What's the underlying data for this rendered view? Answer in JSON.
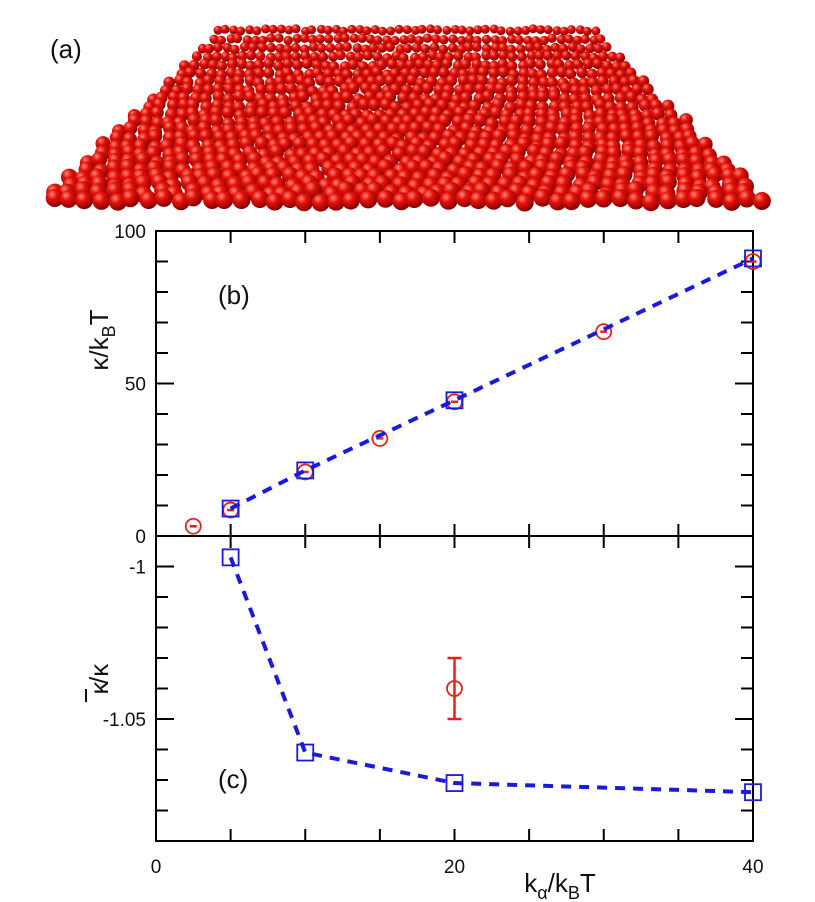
{
  "panel_a": {
    "label": "(a)",
    "sphere_color": "#d40000"
  },
  "chart_data": [
    {
      "type": "scatter",
      "panel_label": "(b)",
      "ylabel": "κ/k_BT",
      "xlim": [
        0,
        40
      ],
      "ylim": [
        0,
        100
      ],
      "x_ticks": [
        0,
        20,
        40
      ],
      "y_ticks": [
        0,
        50,
        100
      ],
      "grid": false,
      "series": [
        {
          "marker": "circle",
          "color": "#e8201a",
          "points": [
            {
              "x": 2.5,
              "y": 3.2
            },
            {
              "x": 5,
              "y": 8.5
            },
            {
              "x": 10,
              "y": 21
            },
            {
              "x": 15,
              "y": 32
            },
            {
              "x": 20,
              "y": 44
            },
            {
              "x": 30,
              "y": 67
            },
            {
              "x": 40,
              "y": 90
            }
          ]
        },
        {
          "marker": "square",
          "color": "#1a1adb",
          "line": "dashed",
          "points": [
            {
              "x": 5,
              "y": 9
            },
            {
              "x": 10,
              "y": 21.5
            },
            {
              "x": 20,
              "y": 44.5
            },
            {
              "x": 40,
              "y": 91
            }
          ]
        }
      ]
    },
    {
      "type": "scatter",
      "panel_label": "(c)",
      "ylabel": "κ̄/κ",
      "xlabel": "k_α/k_BT",
      "xlim": [
        0,
        40
      ],
      "ylim": [
        -1.09,
        -0.99
      ],
      "x_ticks": [
        0,
        20,
        40
      ],
      "y_ticks": [
        -1,
        -1.05
      ],
      "y_tick_labels": [
        "-1",
        "-1.05"
      ],
      "grid": false,
      "series": [
        {
          "marker": "circle",
          "color": "#e8201a",
          "points": [
            {
              "x": 20,
              "y": -1.04,
              "err": 0.01
            }
          ]
        },
        {
          "marker": "square",
          "color": "#1a1adb",
          "line": "dashed",
          "points": [
            {
              "x": 5,
              "y": -0.997
            },
            {
              "x": 10,
              "y": -1.061
            },
            {
              "x": 20,
              "y": -1.071
            },
            {
              "x": 40,
              "y": -1.074
            }
          ]
        }
      ]
    }
  ]
}
